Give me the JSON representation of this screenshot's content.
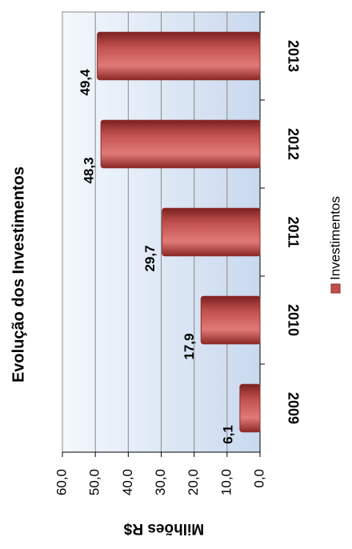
{
  "chart_data": {
    "type": "bar",
    "title": "Evolução dos Investimentos",
    "y_label": "Milhões R$",
    "categories": [
      "2009",
      "2010",
      "2011",
      "2012",
      "2013"
    ],
    "series": [
      {
        "name": "Investimentos",
        "color": "#c0504d",
        "values": [
          6.1,
          17.9,
          29.7,
          48.3,
          49.4
        ],
        "value_labels": [
          "6,1",
          "17,9",
          "29,7",
          "48,3",
          "49,4"
        ]
      }
    ],
    "ylim": [
      0,
      60
    ],
    "yticks": [
      {
        "value": 0,
        "label": "0,0"
      },
      {
        "value": 10,
        "label": "10,0"
      },
      {
        "value": 20,
        "label": "20,0"
      },
      {
        "value": 30,
        "label": "30,0"
      },
      {
        "value": 40,
        "label": "40,0"
      },
      {
        "value": 50,
        "label": "50,0"
      },
      {
        "value": 60,
        "label": "60,0"
      }
    ],
    "grid": true,
    "legend": "right"
  }
}
